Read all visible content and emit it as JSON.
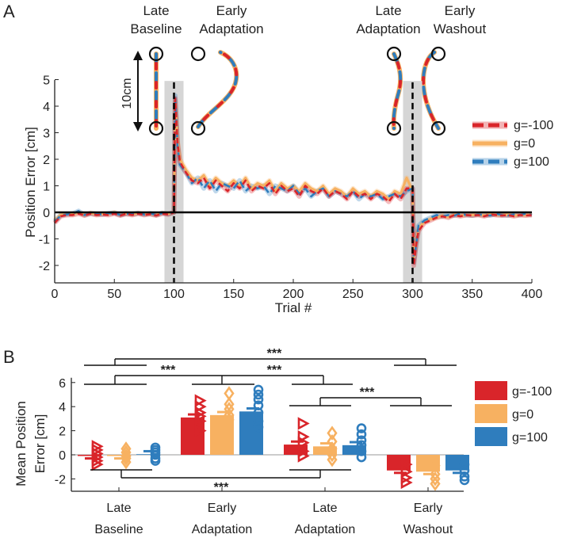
{
  "chart_data": [
    {
      "panel_label": "A",
      "type": "line",
      "xlabel": "Trial #",
      "ylabel": "Position Error [cm]",
      "xlim": [
        0,
        400
      ],
      "ylim": [
        -2.65,
        5
      ],
      "xticks": [
        "0",
        "50",
        "100",
        "150",
        "200",
        "250",
        "300",
        "350",
        "400"
      ],
      "yticks": [
        "-2",
        "-1",
        "0",
        "1",
        "2",
        "3",
        "4",
        "5"
      ],
      "grid": false,
      "legend_position": "right",
      "shaded_trial_ranges": [
        [
          92,
          108
        ],
        [
          292,
          308
        ]
      ],
      "dashed_vertical_lines": [
        100,
        300
      ],
      "zero_line": 0,
      "phase_labels": [
        {
          "line1": "Late",
          "line2": "Baseline"
        },
        {
          "line1": "Early",
          "line2": "Adaptation"
        },
        {
          "line1": "Late",
          "line2": "Adaptation"
        },
        {
          "line1": "Early",
          "line2": "Washout"
        }
      ],
      "scale_bar_label": "10cm",
      "x": [
        0,
        5,
        10,
        15,
        20,
        25,
        30,
        35,
        40,
        45,
        50,
        55,
        60,
        65,
        70,
        75,
        80,
        85,
        90,
        95,
        100,
        101,
        103,
        105,
        110,
        115,
        120,
        125,
        130,
        135,
        140,
        145,
        150,
        155,
        160,
        165,
        170,
        175,
        180,
        185,
        190,
        195,
        200,
        205,
        210,
        215,
        220,
        225,
        230,
        235,
        240,
        245,
        250,
        255,
        260,
        265,
        270,
        275,
        280,
        285,
        290,
        295,
        300,
        301,
        303,
        305,
        310,
        315,
        320,
        325,
        330,
        335,
        340,
        345,
        350,
        355,
        360,
        365,
        370,
        375,
        380,
        385,
        390,
        395,
        400
      ],
      "series": [
        {
          "name": "g=0",
          "color": "#f7b161",
          "values": [
            -0.3,
            -0.1,
            -0.05,
            -0.08,
            0.0,
            -0.1,
            -0.02,
            -0.08,
            -0.05,
            -0.06,
            0.0,
            -0.1,
            -0.03,
            -0.08,
            -0.02,
            -0.07,
            -0.05,
            -0.1,
            -0.02,
            -0.05,
            0.0,
            4.2,
            2.7,
            2.0,
            1.6,
            1.3,
            1.2,
            1.4,
            1.0,
            1.3,
            1.1,
            1.0,
            1.2,
            1.0,
            1.3,
            0.9,
            1.1,
            1.0,
            1.2,
            0.8,
            1.1,
            0.9,
            1.0,
            0.8,
            1.1,
            0.9,
            0.8,
            1.0,
            0.7,
            0.9,
            0.8,
            0.6,
            0.9,
            0.7,
            0.8,
            0.6,
            0.8,
            0.7,
            0.5,
            0.8,
            0.7,
            1.3,
            0.8,
            -1.8,
            -1.1,
            -0.6,
            -0.35,
            -0.25,
            -0.2,
            -0.12,
            -0.18,
            -0.08,
            -0.12,
            -0.1,
            -0.1,
            -0.08,
            -0.12,
            -0.06,
            -0.1,
            -0.1,
            -0.08,
            -0.12,
            -0.1,
            -0.1,
            -0.08
          ]
        },
        {
          "name": "g=100",
          "color": "#2f7dbd",
          "values": [
            -0.35,
            -0.12,
            -0.08,
            -0.05,
            0.05,
            -0.1,
            -0.04,
            -0.06,
            -0.08,
            -0.04,
            -0.02,
            -0.1,
            -0.05,
            -0.06,
            -0.03,
            -0.08,
            -0.04,
            -0.1,
            -0.03,
            -0.06,
            0.0,
            4.4,
            2.5,
            1.8,
            1.5,
            1.1,
            1.3,
            0.9,
            1.2,
            0.8,
            1.1,
            1.0,
            0.9,
            1.2,
            0.8,
            1.0,
            0.9,
            1.0,
            0.7,
            1.0,
            0.9,
            0.8,
            1.0,
            0.7,
            0.9,
            0.6,
            0.8,
            0.9,
            0.6,
            0.8,
            0.7,
            0.6,
            0.8,
            0.5,
            0.7,
            0.6,
            0.7,
            0.5,
            0.6,
            0.7,
            0.6,
            0.8,
            0.9,
            -1.9,
            -1.2,
            -0.5,
            -0.3,
            -0.2,
            -0.1,
            -0.15,
            -0.1,
            -0.12,
            -0.05,
            -0.1,
            -0.12,
            -0.08,
            -0.1,
            -0.12,
            -0.06,
            -0.1,
            -0.12,
            -0.08,
            -0.1,
            -0.05,
            -0.1
          ]
        },
        {
          "name": "g=-100",
          "color": "#d9252a",
          "values": [
            -0.4,
            -0.15,
            -0.1,
            -0.1,
            -0.05,
            -0.12,
            -0.05,
            -0.1,
            -0.08,
            -0.1,
            -0.05,
            -0.12,
            -0.06,
            -0.1,
            -0.05,
            -0.1,
            -0.07,
            -0.12,
            -0.05,
            -0.08,
            0.0,
            4.3,
            2.6,
            1.9,
            1.5,
            1.2,
            1.1,
            1.3,
            0.9,
            1.2,
            1.0,
            0.8,
            1.1,
            0.9,
            1.2,
            0.8,
            1.0,
            0.9,
            1.1,
            0.7,
            1.0,
            0.8,
            0.9,
            0.6,
            1.0,
            0.8,
            0.7,
            0.9,
            0.6,
            0.8,
            0.7,
            0.5,
            0.8,
            0.6,
            0.7,
            0.5,
            0.7,
            0.6,
            0.4,
            0.7,
            0.5,
            0.9,
            0.9,
            -2.0,
            -1.2,
            -0.7,
            -0.4,
            -0.3,
            -0.2,
            -0.15,
            -0.2,
            -0.1,
            -0.15,
            -0.1,
            -0.12,
            -0.1,
            -0.15,
            -0.08,
            -0.1,
            -0.12,
            -0.1,
            -0.15,
            -0.1,
            -0.12,
            -0.1
          ]
        }
      ]
    },
    {
      "panel_label": "B",
      "type": "bar",
      "ylabel_line1": "Mean Position",
      "ylabel_line2": "Error [cm]",
      "ylim": [
        -3,
        6.4
      ],
      "yticks": [
        "-2",
        "0",
        "2",
        "4",
        "6"
      ],
      "legend_position": "right",
      "categories": [
        {
          "line1": "Late",
          "line2": "Baseline"
        },
        {
          "line1": "Early",
          "line2": "Adaptation"
        },
        {
          "line1": "Late",
          "line2": "Adaptation"
        },
        {
          "line1": "Early",
          "line2": "Washout"
        }
      ],
      "series": [
        {
          "name": "g=-100",
          "color": "#d9252a",
          "marker": "triangle",
          "values": [
            -0.1,
            3.1,
            0.85,
            -1.3
          ],
          "points": [
            [
              0.7,
              0.4,
              0.1,
              -0.2,
              -0.5,
              -0.8
            ],
            [
              4.5,
              4.0,
              3.5,
              3.2,
              2.8,
              2.0
            ],
            [
              2.6,
              1.5,
              1.0,
              0.3,
              -0.1
            ],
            [
              -0.8,
              -1.4,
              -1.9,
              -2.3
            ]
          ]
        },
        {
          "name": "g=0",
          "color": "#f7b161",
          "marker": "diamond",
          "values": [
            -0.1,
            3.3,
            0.7,
            -1.4
          ],
          "points": [
            [
              0.5,
              0.2,
              -0.1,
              -0.3,
              -0.6
            ],
            [
              5.1,
              4.2,
              3.8,
              3.3,
              2.9
            ],
            [
              1.8,
              1.1,
              0.5,
              0.0,
              -0.4
            ],
            [
              -0.9,
              -1.6,
              -2.0,
              -2.4
            ]
          ]
        },
        {
          "name": "g=100",
          "color": "#2f7dbd",
          "marker": "circle",
          "values": [
            0.05,
            3.6,
            0.8,
            -1.3
          ],
          "points": [
            [
              0.6,
              0.4,
              0.2,
              0.0,
              -0.3,
              -0.5
            ],
            [
              5.4,
              5.0,
              4.6,
              4.1,
              3.5,
              2.8,
              2.3
            ],
            [
              2.2,
              1.7,
              1.2,
              0.8,
              0.3,
              -0.2
            ],
            [
              -0.8,
              -1.3,
              -1.8,
              -2.1
            ]
          ]
        }
      ],
      "significance": [
        "***",
        "***",
        "***",
        "***",
        "***"
      ]
    }
  ]
}
